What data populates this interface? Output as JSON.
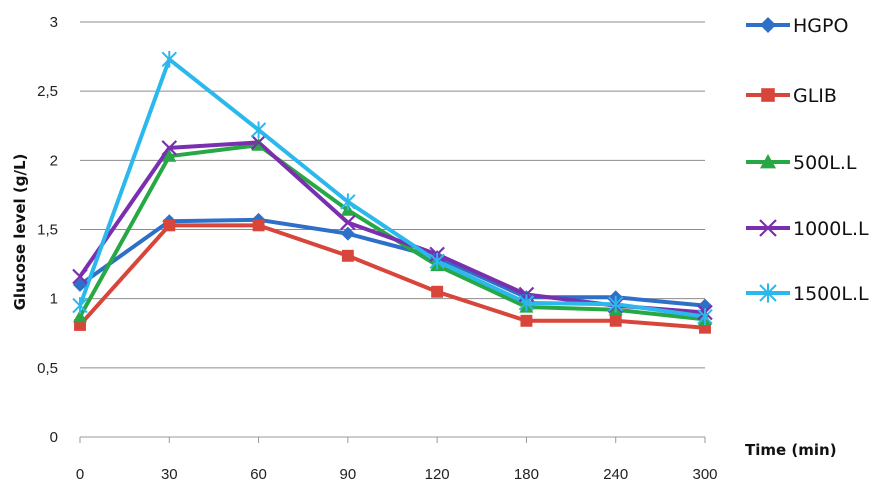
{
  "chart_data": {
    "type": "line",
    "title": "",
    "xlabel": "Time (min)",
    "ylabel": "Glucose level (g/L)",
    "categories": [
      "0",
      "30",
      "60",
      "90",
      "120",
      "180",
      "240",
      "300"
    ],
    "yticks": [
      "0",
      "0,5",
      "1",
      "1,5",
      "2",
      "2,5",
      "3"
    ],
    "ylim": [
      0,
      3
    ],
    "grid": "horizontal",
    "legend_position": "right",
    "series": [
      {
        "name": "HGPO",
        "color": "#2e6fc7",
        "marker": "diamond",
        "values": [
          1.1,
          1.56,
          1.57,
          1.47,
          1.3,
          1.01,
          1.01,
          0.95
        ]
      },
      {
        "name": "GLIB",
        "color": "#d8453a",
        "marker": "square",
        "values": [
          0.81,
          1.53,
          1.53,
          1.31,
          1.05,
          0.84,
          0.84,
          0.79
        ]
      },
      {
        "name": "500L.L",
        "color": "#27a845",
        "marker": "triangle",
        "values": [
          0.87,
          2.03,
          2.11,
          1.64,
          1.24,
          0.94,
          0.92,
          0.85
        ]
      },
      {
        "name": "1000L.L",
        "color": "#7a2fae",
        "marker": "x",
        "values": [
          1.16,
          2.09,
          2.13,
          1.55,
          1.32,
          1.03,
          0.95,
          0.9
        ]
      },
      {
        "name": "1500L.L",
        "color": "#2bb8ec",
        "marker": "star",
        "values": [
          0.95,
          2.73,
          2.22,
          1.7,
          1.27,
          0.97,
          0.96,
          0.87
        ]
      }
    ]
  }
}
